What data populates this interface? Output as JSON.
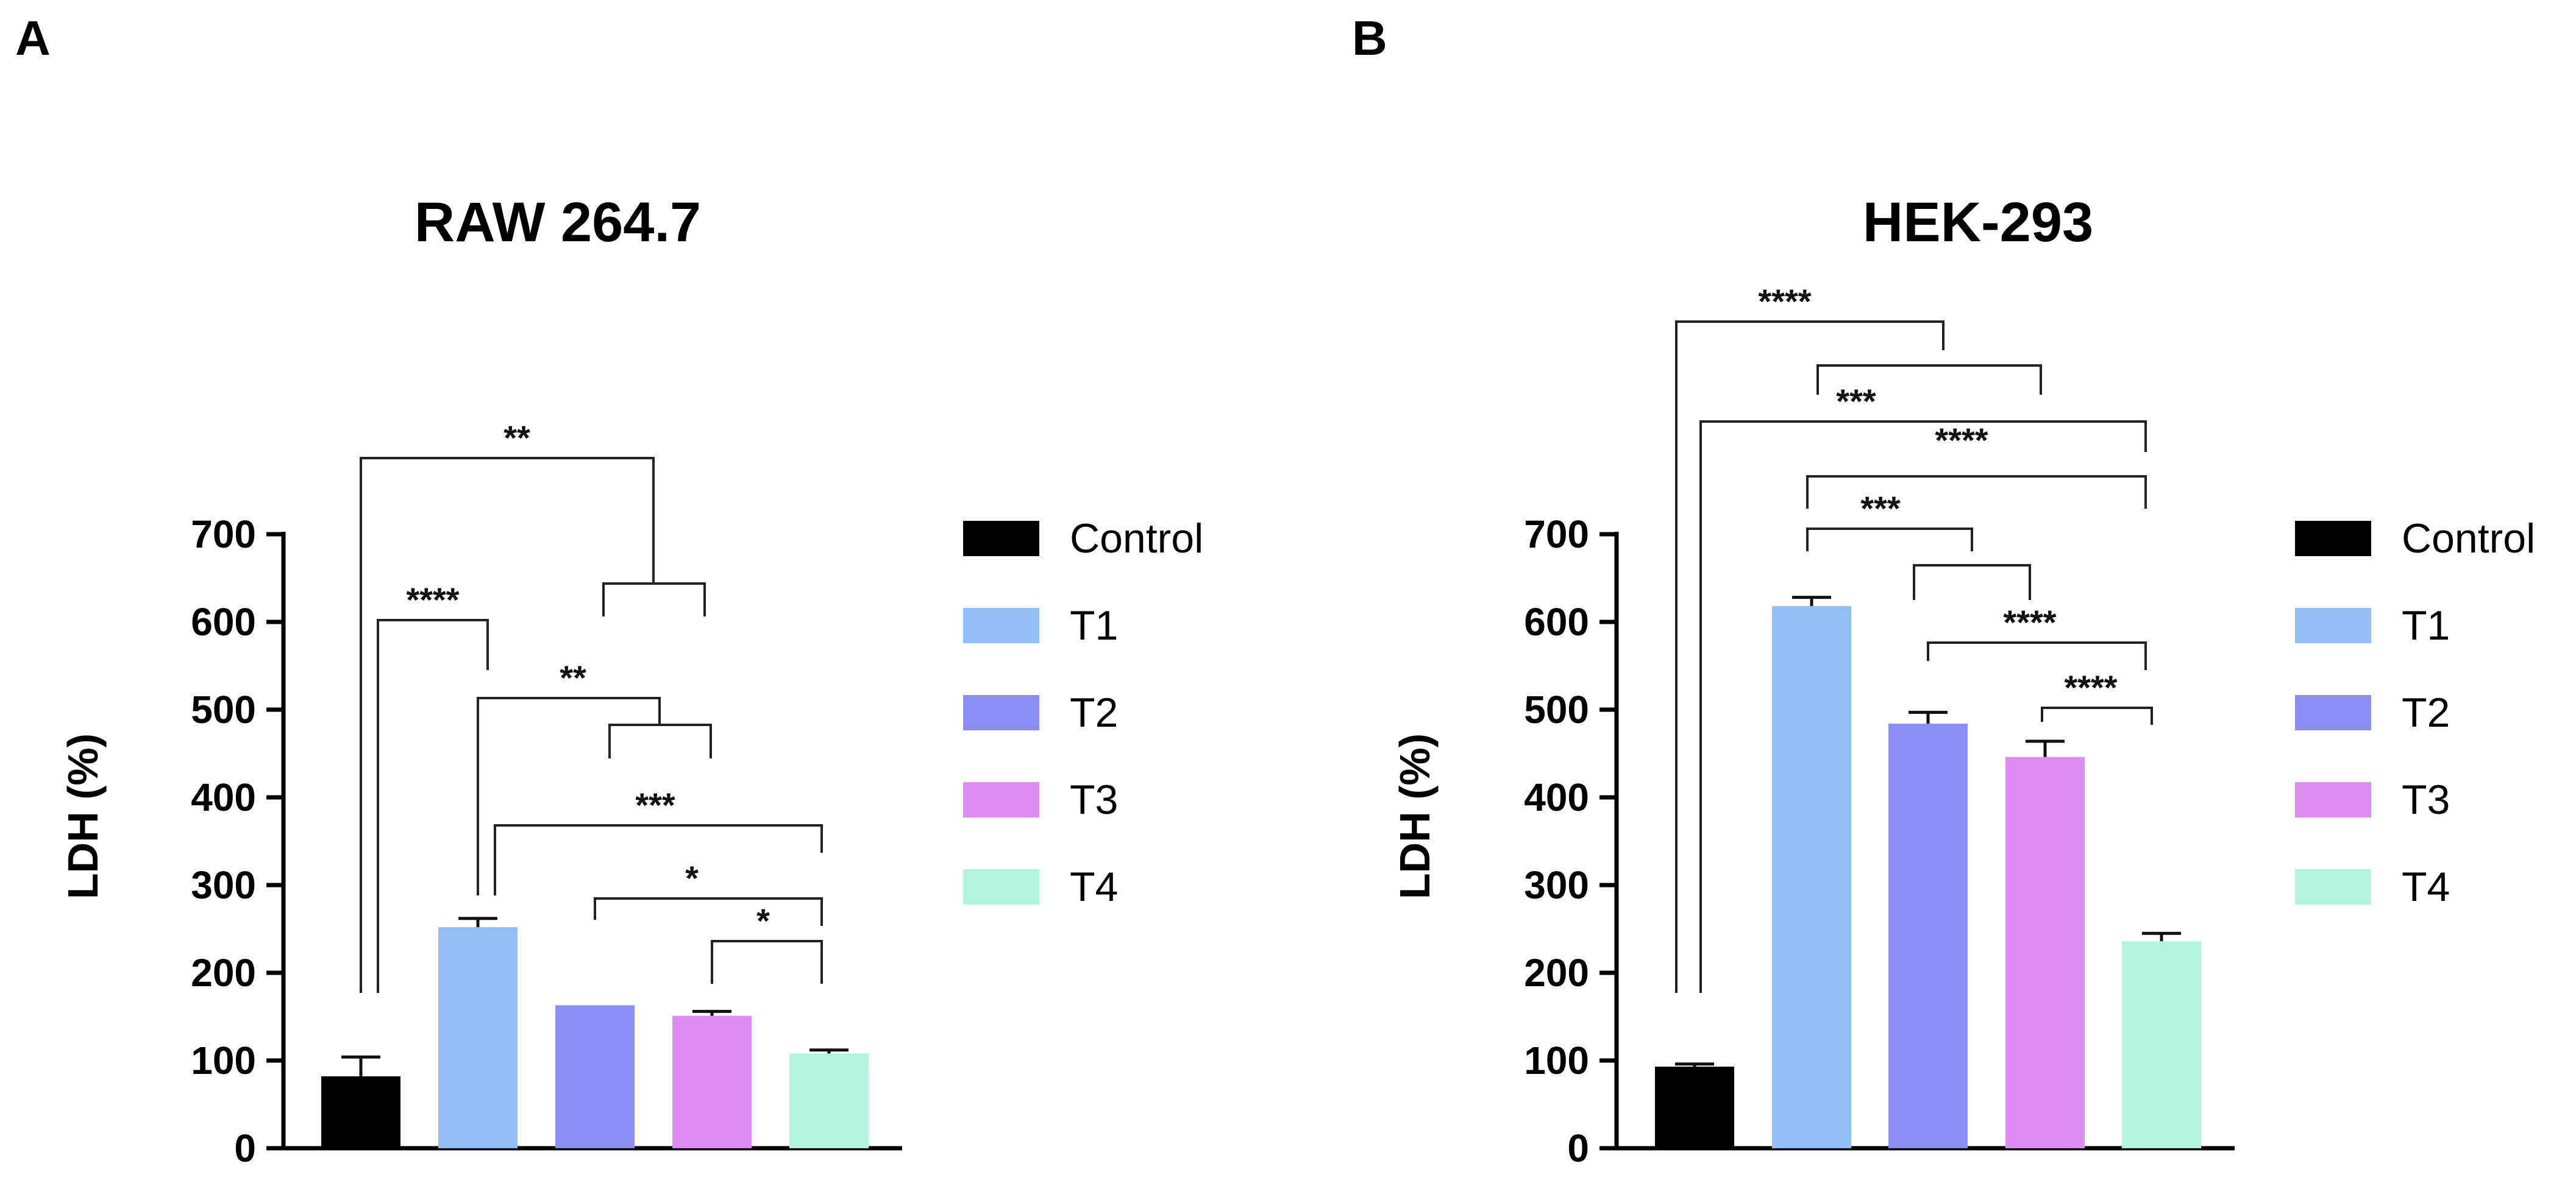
{
  "chart_data": [
    {
      "panel": "A",
      "type": "bar",
      "title": "RAW 264.7",
      "ylabel": "LDH (%)",
      "xlabel": "",
      "ylim": [
        0,
        700
      ],
      "yticks": [
        0,
        100,
        200,
        300,
        400,
        500,
        600,
        700
      ],
      "categories": [
        "Control",
        "T1",
        "T2",
        "T3",
        "T4"
      ],
      "values": [
        82,
        252,
        163,
        151,
        108
      ],
      "errors": [
        22,
        10,
        0,
        5,
        4
      ],
      "brackets": [
        {
          "from": 0,
          "to": "c1",
          "label": "**"
        },
        {
          "from": "c1a",
          "to": "c1b",
          "label": ""
        },
        {
          "from": 0,
          "to": 1,
          "label": "****"
        },
        {
          "from": 1,
          "to": "c2",
          "label": "**"
        },
        {
          "from": "c2a",
          "to": "c2b",
          "label": ""
        },
        {
          "from": 1,
          "to": 4,
          "label": "***"
        },
        {
          "from": 2,
          "to": 4,
          "label": "*"
        },
        {
          "from": 3,
          "to": 4,
          "label": "*"
        }
      ]
    },
    {
      "panel": "B",
      "type": "bar",
      "title": "HEK-293",
      "ylabel": "LDH (%)",
      "xlabel": "",
      "ylim": [
        0,
        700
      ],
      "yticks": [
        0,
        100,
        200,
        300,
        400,
        500,
        600,
        700
      ],
      "categories": [
        "Control",
        "T1",
        "T2",
        "T3",
        "T4"
      ],
      "values": [
        93,
        618,
        484,
        446,
        236
      ],
      "errors": [
        3,
        10,
        13,
        18,
        9
      ],
      "brackets": [
        {
          "label": "****"
        },
        {
          "label": ""
        },
        {
          "label": "***"
        },
        {
          "label": "****"
        },
        {
          "label": ""
        },
        {
          "label": "***"
        },
        {
          "label": ""
        },
        {
          "label": "****"
        },
        {
          "label": "****"
        }
      ]
    }
  ],
  "legend": {
    "items": [
      {
        "label": "Control",
        "color": "#000000"
      },
      {
        "label": "T1",
        "color": "#93bff7"
      },
      {
        "label": "T2",
        "color": "#8c8cf7"
      },
      {
        "label": "T3",
        "color": "#dd8cf1"
      },
      {
        "label": "T4",
        "color": "#b3f4dd"
      }
    ]
  },
  "bar_colors": [
    "#000000",
    "#93bff7",
    "#8c8cf7",
    "#dd8cf1",
    "#b3f4dd"
  ]
}
